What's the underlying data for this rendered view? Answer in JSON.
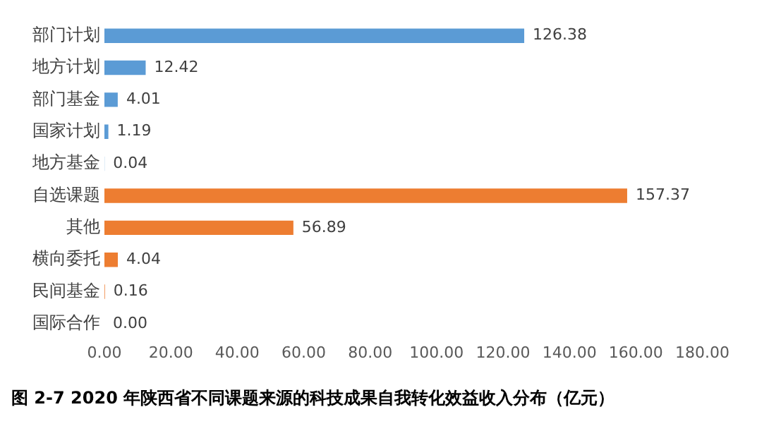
{
  "chart_data": {
    "type": "bar",
    "orientation": "horizontal",
    "title": "图 2-7 2020 年陕西省不同课题来源的科技成果自我转化效益收入分布（亿元）",
    "categories": [
      "部门计划",
      "地方计划",
      "部门基金",
      "国家计划",
      "地方基金",
      "自选课题",
      "其他",
      "横向委托",
      "民间基金",
      "国际合作"
    ],
    "values": [
      126.38,
      12.42,
      4.01,
      1.19,
      0.04,
      157.37,
      56.89,
      4.04,
      0.16,
      0
    ],
    "colors": [
      "#5b9bd5",
      "#5b9bd5",
      "#5b9bd5",
      "#5b9bd5",
      "#5b9bd5",
      "#ed7d31",
      "#ed7d31",
      "#ed7d31",
      "#ed7d31",
      "#ed7d31"
    ],
    "value_labels": [
      "126.38",
      "12.42",
      "4.01",
      "1.19",
      "0.04",
      "157.37",
      "56.89",
      "4.04",
      "0.16",
      "0.00"
    ],
    "xlim": [
      0,
      180
    ],
    "xticks": [
      {
        "value": 0,
        "label": "0.00"
      },
      {
        "value": 20,
        "label": "20.00"
      },
      {
        "value": 40,
        "label": "40.00"
      },
      {
        "value": 60,
        "label": "60.00"
      },
      {
        "value": 80,
        "label": "80.00"
      },
      {
        "value": 100,
        "label": "100.00"
      },
      {
        "value": 120,
        "label": "120.00"
      },
      {
        "value": 140,
        "label": "140.00"
      },
      {
        "value": 160,
        "label": "160.00"
      },
      {
        "value": 180,
        "label": "180.00"
      }
    ],
    "grid": false,
    "legend": false
  }
}
